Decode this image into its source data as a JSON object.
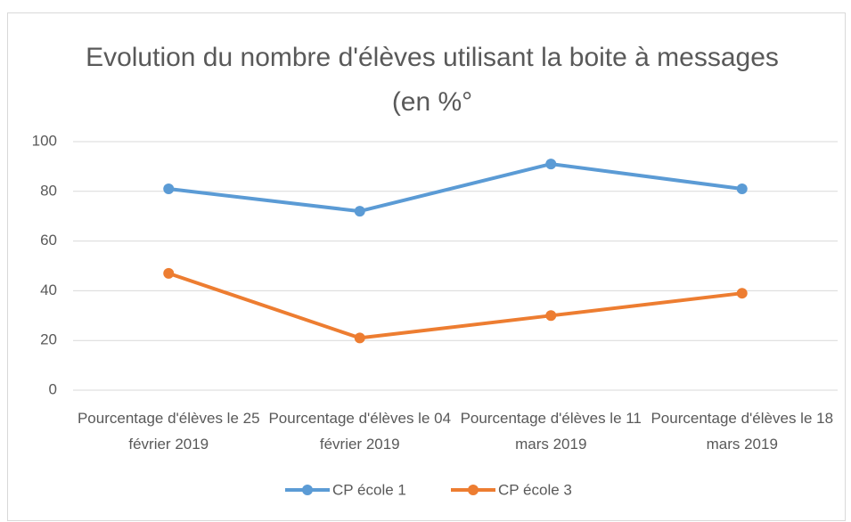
{
  "chart_data": {
    "type": "line",
    "title": "Evolution du nombre d'élèves utilisant la boite à messages (en %°",
    "categories": [
      "Pourcentage d'élèves le 25 février 2019",
      "Pourcentage d'élèves le 04 février 2019",
      "Pourcentage d'élèves le 11 mars 2019",
      "Pourcentage d'élèves le 18 mars 2019"
    ],
    "series": [
      {
        "name": "CP école 1",
        "color": "#5b9bd5",
        "values": [
          81,
          72,
          91,
          81
        ]
      },
      {
        "name": "CP école 3",
        "color": "#ed7d31",
        "values": [
          47,
          21,
          30,
          39
        ]
      }
    ],
    "ylim": [
      0,
      100
    ],
    "yticks": [
      0,
      20,
      40,
      60,
      80,
      100
    ],
    "grid": true,
    "legend": "bottom"
  }
}
